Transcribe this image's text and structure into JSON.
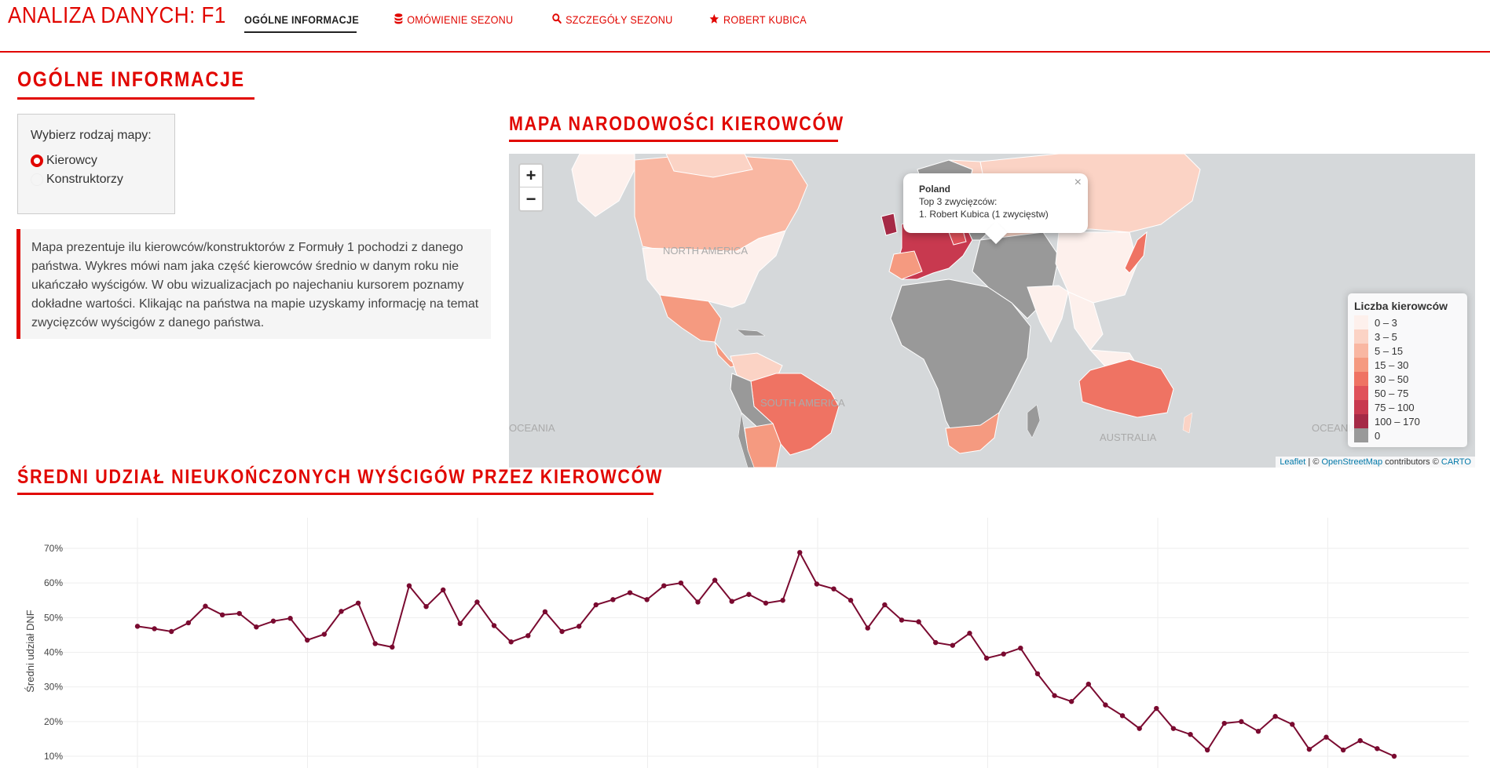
{
  "app": {
    "brand": "ANALIZA DANYCH: F1"
  },
  "nav": [
    {
      "label": "OGÓLNE INFORMACJE",
      "icon": "",
      "active": true
    },
    {
      "label": "OMÓWIENIE SEZONU",
      "icon": "database-icon",
      "active": false
    },
    {
      "label": "SZCZEGÓŁY SEZONU",
      "icon": "search-icon",
      "active": false
    },
    {
      "label": "ROBERT KUBICA",
      "icon": "star-icon",
      "active": false
    }
  ],
  "page": {
    "title": "OGÓLNE INFORMACJE",
    "map_title": "MAPA NARODOWOŚCI KIEROWCÓW",
    "chart_title": "ŚREDNI UDZIAŁ NIEUKOŃCZONYCH WYŚCIGÓW PRZEZ KIEROWCÓW"
  },
  "controls": {
    "label": "Wybierz rodzaj mapy:",
    "options": [
      "Kierowcy",
      "Konstruktorzy"
    ],
    "selected": "Kierowcy"
  },
  "description": "Mapa prezentuje ilu kierowców/konstruktorów z Formuły 1 pochodzi z danego państwa. Wykres mówi nam jaka część kierowców średnio w danym roku nie ukańczało wyścigów. W obu wizualizacjach po najechaniu kursorem poznamy dokładne wartości. Klikając na państwa na mapie uzyskamy informację na temat zwycięzców wyścigów z danego państwa.",
  "map": {
    "zoom_in": "+",
    "zoom_out": "−",
    "popup": {
      "country": "Poland",
      "subtitle": "Top 3 zwycięzców:",
      "line1": "1. Robert Kubica (1 zwycięstw)",
      "close": "×"
    },
    "labels": [
      "NORTH AMERICA",
      "SOUTH AMERICA",
      "AUSTRALIA",
      "OCEANIA",
      "OCEANIA"
    ],
    "legend": {
      "title": "Liczba kierowców",
      "items": [
        {
          "label": "0 – 3",
          "color": "#fdf0ec"
        },
        {
          "label": "3 – 5",
          "color": "#fbd3c5"
        },
        {
          "label": "5 – 15",
          "color": "#f9b7a2"
        },
        {
          "label": "15 – 30",
          "color": "#f59a80"
        },
        {
          "label": "30 – 50",
          "color": "#ef7363"
        },
        {
          "label": "50 – 75",
          "color": "#e0525a"
        },
        {
          "label": "75 – 100",
          "color": "#c8394f"
        },
        {
          "label": "100 – 170",
          "color": "#a52a46"
        },
        {
          "label": "0",
          "color": "#999999"
        }
      ]
    },
    "attribution": {
      "leaflet": "Leaflet",
      "sep": " | © ",
      "osm": "OpenStreetMap",
      "mid": " contributors © ",
      "carto": "CARTO"
    }
  },
  "colors": {
    "accent": "#e10600",
    "line": "#7a0a30"
  },
  "chart_data": {
    "type": "line",
    "title": "",
    "xlabel": "",
    "ylabel": "Średni udział DNF",
    "ylim": [
      8,
      72
    ],
    "yticks": [
      "10%",
      "20%",
      "30%",
      "40%",
      "50%",
      "60%",
      "70%"
    ],
    "ytick_values": [
      10,
      20,
      30,
      40,
      50,
      60,
      70
    ],
    "grid": true,
    "series": [
      {
        "values": [
          47.5,
          46.8,
          46.0,
          48.5,
          53.3,
          50.8,
          51.2,
          47.3,
          49.0,
          49.8,
          43.5,
          45.2,
          51.8,
          54.2,
          42.5,
          41.5,
          59.2,
          53.2,
          58.0,
          48.3,
          54.5,
          47.7,
          43.0,
          44.8,
          51.7,
          46.0,
          47.5,
          53.7,
          55.2,
          57.2,
          55.2,
          59.2,
          60.0,
          54.5,
          60.8,
          54.7,
          56.7,
          54.2,
          55.0,
          68.8,
          59.7,
          58.3,
          55.0,
          47.0,
          53.7,
          49.3,
          48.8,
          42.8,
          42.0,
          45.5,
          38.3,
          39.5,
          41.2,
          33.8,
          27.5,
          25.8,
          30.8,
          24.8,
          21.7,
          18.0,
          23.8,
          18.0,
          16.3,
          11.8,
          19.5,
          20.0,
          17.2,
          21.5,
          19.2,
          12.0,
          15.5,
          11.8,
          14.5,
          12.2,
          10.0
        ]
      }
    ]
  }
}
